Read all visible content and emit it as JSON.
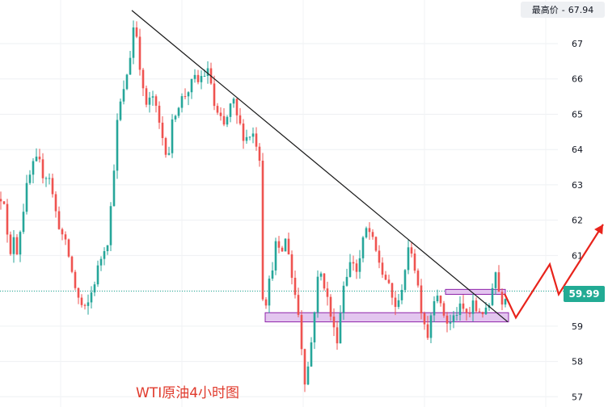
{
  "header": {
    "high_label": "最高价",
    "high_sep": "-",
    "high_value": "67.94"
  },
  "price_tag": "59.99",
  "title": "WTI原油4小时图",
  "colors": {
    "up": "#26a69a",
    "down": "#ef5350",
    "trendline": "#1a1a1a",
    "zone_fill": "#e3c6ef",
    "zone_stroke": "#8e24aa",
    "arrow": "#e8241c",
    "last_price_line": "#22ab94"
  },
  "chart_data": {
    "type": "candlestick",
    "title": "WTI原油4小时图",
    "ylim": [
      57,
      68
    ],
    "y_ticks": [
      "57",
      "58",
      "59",
      "60",
      "61",
      "62",
      "63",
      "64",
      "65",
      "66",
      "67"
    ],
    "last_price": 59.99,
    "high": 67.94,
    "grid": true,
    "legend": "none",
    "path": [
      [
        0,
        62.6
      ],
      [
        4,
        62.9
      ],
      [
        9,
        61.5
      ],
      [
        14,
        60.8
      ],
      [
        17,
        61.6
      ],
      [
        20,
        61.0
      ],
      [
        28,
        62.2
      ],
      [
        33,
        62.9
      ],
      [
        40,
        63.5
      ],
      [
        47,
        63.7
      ],
      [
        55,
        63.2
      ],
      [
        60,
        63.4
      ],
      [
        65,
        62.7
      ],
      [
        70,
        62.1
      ],
      [
        78,
        61.5
      ],
      [
        84,
        61.1
      ],
      [
        90,
        60.4
      ],
      [
        95,
        59.9
      ],
      [
        100,
        59.6
      ],
      [
        106,
        59.4
      ],
      [
        110,
        59.7
      ],
      [
        116,
        60.2
      ],
      [
        122,
        60.7
      ],
      [
        128,
        61.2
      ],
      [
        134,
        61.5
      ],
      [
        140,
        63.2
      ],
      [
        144,
        64.6
      ],
      [
        149,
        65.3
      ],
      [
        154,
        65.7
      ],
      [
        158,
        66.3
      ],
      [
        162,
        66.8
      ],
      [
        166,
        67.7
      ],
      [
        170,
        67.1
      ],
      [
        174,
        66.2
      ],
      [
        178,
        65.4
      ],
      [
        183,
        65.2
      ],
      [
        188,
        65.6
      ],
      [
        194,
        65.0
      ],
      [
        199,
        64.5
      ],
      [
        204,
        64.1
      ],
      [
        208,
        63.8
      ],
      [
        213,
        64.7
      ],
      [
        218,
        65.2
      ],
      [
        224,
        65.4
      ],
      [
        230,
        65.6
      ],
      [
        236,
        65.8
      ],
      [
        240,
        66.0
      ],
      [
        245,
        65.9
      ],
      [
        250,
        66.1
      ],
      [
        256,
        66.2
      ],
      [
        260,
        66.1
      ],
      [
        264,
        65.3
      ],
      [
        268,
        65.0
      ],
      [
        273,
        64.8
      ],
      [
        278,
        64.6
      ],
      [
        283,
        65.1
      ],
      [
        288,
        65.4
      ],
      [
        293,
        64.9
      ],
      [
        298,
        64.6
      ],
      [
        303,
        64.3
      ],
      [
        307,
        64.4
      ],
      [
        312,
        64.5
      ],
      [
        317,
        64.2
      ],
      [
        321,
        63.8
      ],
      [
        324,
        60.0
      ],
      [
        328,
        59.6
      ],
      [
        332,
        60.1
      ],
      [
        336,
        60.6
      ],
      [
        341,
        61.3
      ],
      [
        346,
        61.0
      ],
      [
        350,
        61.2
      ],
      [
        354,
        61.5
      ],
      [
        358,
        61.0
      ],
      [
        362,
        60.2
      ],
      [
        366,
        59.8
      ],
      [
        370,
        59.2
      ],
      [
        374,
        58.2
      ],
      [
        377,
        57.5
      ],
      [
        380,
        57.7
      ],
      [
        384,
        58.3
      ],
      [
        388,
        59.3
      ],
      [
        393,
        60.3
      ],
      [
        398,
        60.5
      ],
      [
        403,
        60.0
      ],
      [
        408,
        59.4
      ],
      [
        412,
        59.0
      ],
      [
        416,
        58.5
      ],
      [
        420,
        59.2
      ],
      [
        425,
        60.2
      ],
      [
        430,
        60.6
      ],
      [
        436,
        60.9
      ],
      [
        442,
        60.5
      ],
      [
        448,
        61.3
      ],
      [
        454,
        61.8
      ],
      [
        458,
        61.6
      ],
      [
        463,
        61.2
      ],
      [
        468,
        60.9
      ],
      [
        473,
        60.5
      ],
      [
        478,
        60.3
      ],
      [
        483,
        59.9
      ],
      [
        488,
        59.6
      ],
      [
        493,
        59.6
      ],
      [
        498,
        60.3
      ],
      [
        503,
        60.9
      ],
      [
        508,
        61.3
      ],
      [
        512,
        60.8
      ],
      [
        516,
        60.3
      ],
      [
        520,
        59.6
      ],
      [
        524,
        59.3
      ],
      [
        528,
        58.6
      ],
      [
        532,
        59.2
      ],
      [
        536,
        59.8
      ],
      [
        540,
        60.1
      ],
      [
        545,
        59.5
      ],
      [
        550,
        59.3
      ],
      [
        555,
        59.0
      ],
      [
        560,
        59.2
      ],
      [
        565,
        59.4
      ],
      [
        570,
        59.5
      ],
      [
        575,
        59.4
      ],
      [
        580,
        59.3
      ],
      [
        585,
        59.6
      ],
      [
        590,
        59.4
      ],
      [
        595,
        59.5
      ],
      [
        600,
        59.3
      ],
      [
        605,
        59.6
      ],
      [
        609,
        60.2
      ],
      [
        612,
        60.7
      ],
      [
        616,
        60.1
      ],
      [
        620,
        59.7
      ],
      [
        624,
        59.9
      ],
      [
        628,
        59.98
      ]
    ],
    "trendline": [
      [
        163,
        67.94
      ],
      [
        628,
        59.12
      ]
    ],
    "zones": [
      [
        328,
        629,
        59.12,
        59.38
      ],
      [
        551,
        625,
        59.9,
        60.04
      ]
    ],
    "projection": [
      [
        624,
        59.92
      ],
      [
        638,
        59.24
      ],
      [
        680,
        60.75
      ],
      [
        691,
        59.9
      ],
      [
        746,
        61.88
      ]
    ]
  }
}
